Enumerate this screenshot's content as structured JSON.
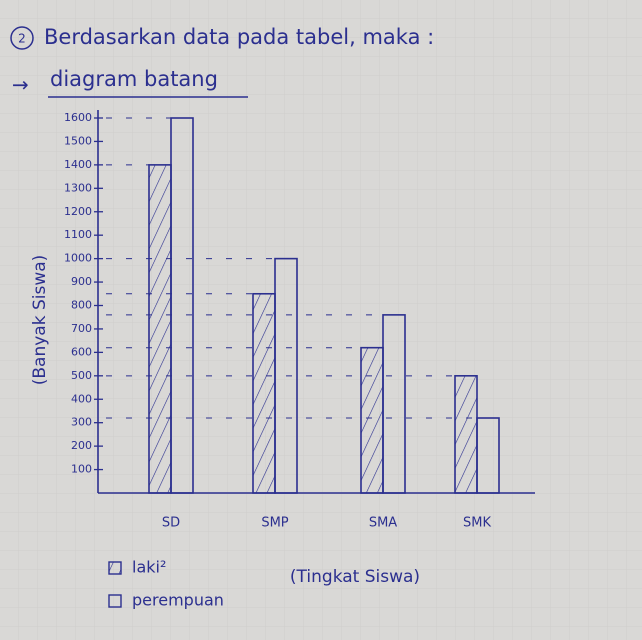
{
  "number": "2",
  "heading": "Berdasarkan data pada tabel, maka :",
  "chart_data": {
    "type": "bar",
    "title": "diagram batang",
    "y_label": "(Banyak Siswa)",
    "x_label": "(Tingkat Siswa)",
    "categories": [
      "SD",
      "SMP",
      "SMA",
      "SMK"
    ],
    "series": [
      {
        "name": "laki²",
        "color": "#2b2f8f",
        "hatched": true,
        "values": [
          1400,
          850,
          620,
          500
        ]
      },
      {
        "name": "perempuan",
        "color": "#2b2f8f",
        "hatched": false,
        "values": [
          1600,
          1000,
          760,
          320
        ]
      }
    ],
    "ylim": [
      0,
      1600
    ],
    "yticks": [
      100,
      200,
      300,
      400,
      500,
      600,
      700,
      800,
      900,
      1000,
      1100,
      1200,
      1300,
      1400,
      1500,
      1600
    ],
    "grid": false
  }
}
